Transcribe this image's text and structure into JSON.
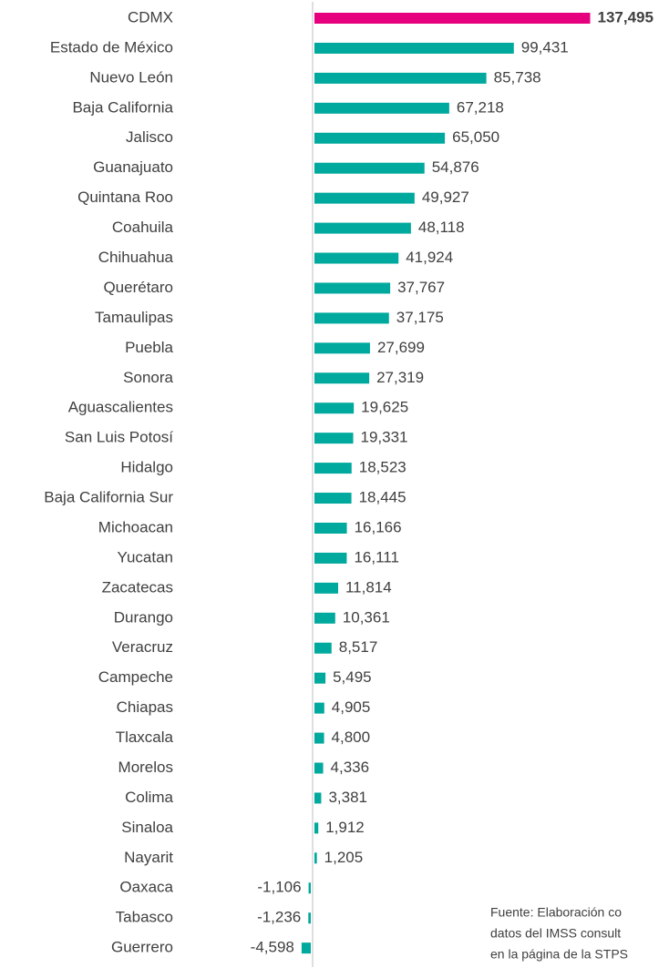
{
  "chart_data": {
    "type": "barh",
    "categories": [
      "CDMX",
      "Estado de México",
      "Nuevo León",
      "Baja California",
      "Jalisco",
      "Guanajuato",
      "Quintana Roo",
      "Coahuila",
      "Chihuahua",
      "Querétaro",
      "Tamaulipas",
      "Puebla",
      "Sonora",
      "Aguascalientes",
      "San Luis Potosí",
      "Hidalgo",
      "Baja California Sur",
      "Michoacan",
      "Yucatan",
      "Zacatecas",
      "Durango",
      "Veracruz",
      "Campeche",
      "Chiapas",
      "Tlaxcala",
      "Morelos",
      "Colima",
      "Sinaloa",
      "Nayarit",
      "Oaxaca",
      "Tabasco",
      "Guerrero"
    ],
    "values": [
      137495,
      99431,
      85738,
      67218,
      65050,
      54876,
      49927,
      48118,
      41924,
      37767,
      37175,
      27699,
      27319,
      19625,
      19331,
      18523,
      18445,
      16166,
      16111,
      11814,
      10361,
      8517,
      5495,
      4905,
      4800,
      4336,
      3381,
      1912,
      1205,
      -1106,
      -1236,
      -4598
    ],
    "value_labels": [
      "137,495",
      "99,431",
      "85,738",
      "67,218",
      "65,050",
      "54,876",
      "49,927",
      "48,118",
      "41,924",
      "37,767",
      "37,175",
      "27,699",
      "27,319",
      "19,625",
      "19,331",
      "18,523",
      "18,445",
      "16,166",
      "16,111",
      "11,814",
      "10,361",
      "8,517",
      "5,495",
      "4,905",
      "4,800",
      "4,336",
      "3,381",
      "1,912",
      "1,205",
      "-1,106",
      "-1,236",
      "-4,598"
    ],
    "color": "#00a99d",
    "highlight": {
      "index": 0,
      "color": "#e6007e",
      "bold": true
    },
    "xlim": [
      -20000,
      150000
    ],
    "annotation": [
      "Fuente: Elaboración co",
      "datos del IMSS consult",
      "en la página de la STPS"
    ]
  }
}
